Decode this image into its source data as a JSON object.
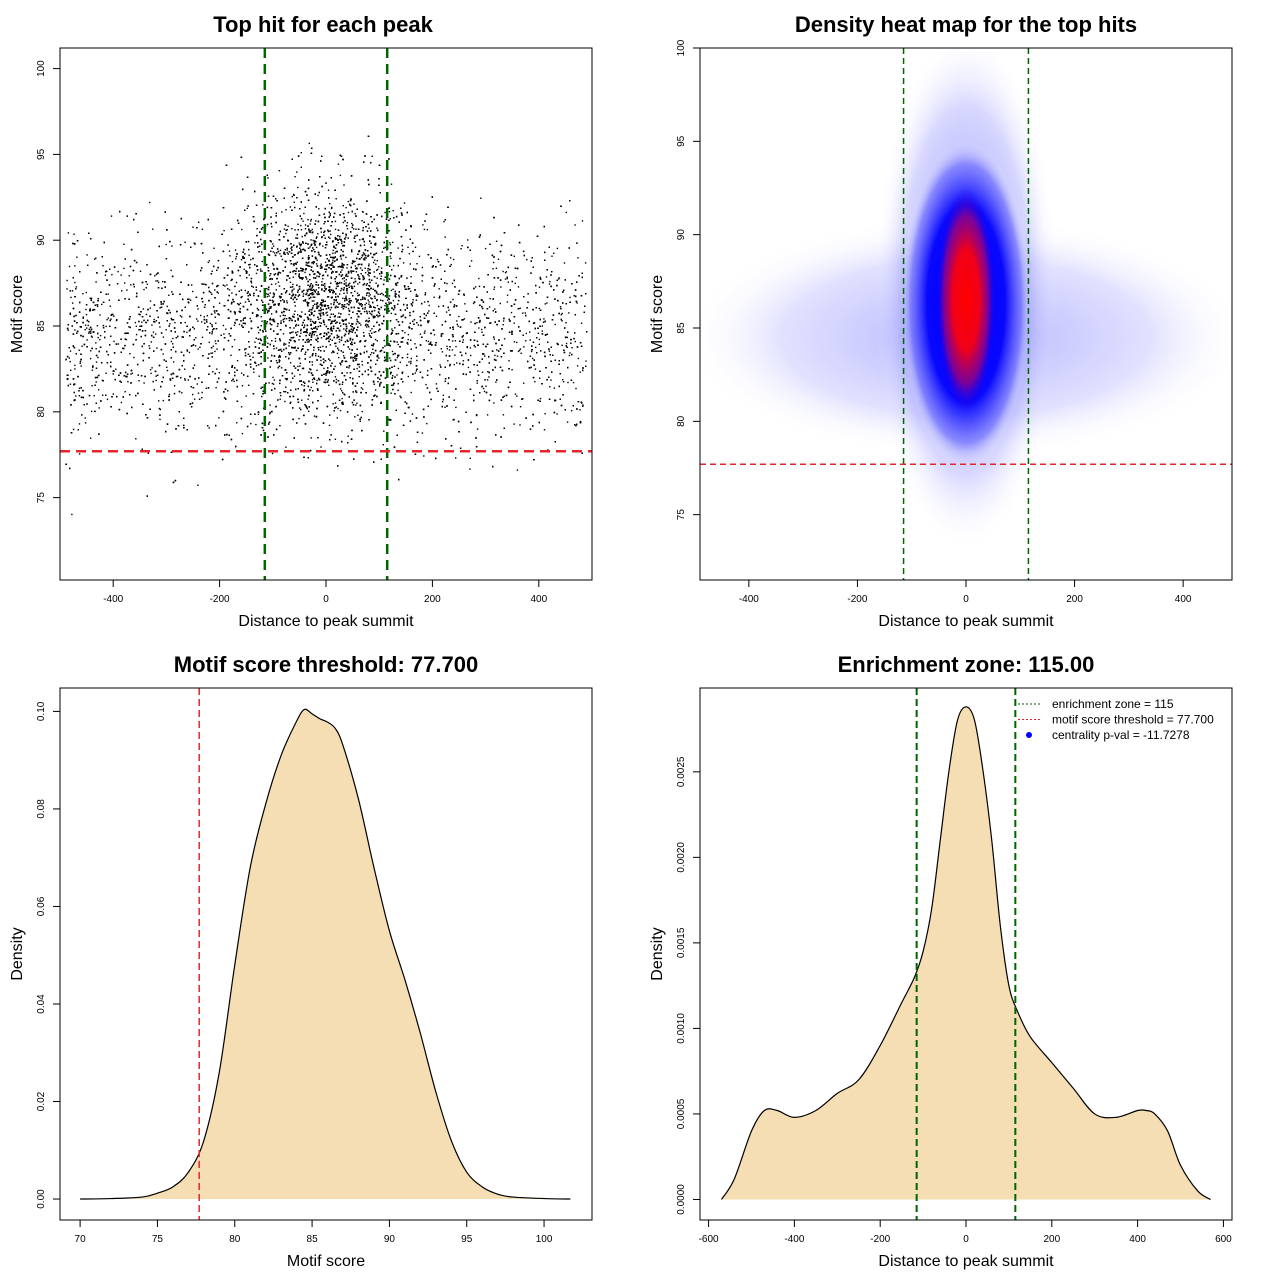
{
  "chart_data": [
    {
      "type": "scatter",
      "title": "Top hit for each peak",
      "xlabel": "Distance to peak summit",
      "ylabel": "Motif score",
      "xlim": [
        -500,
        500
      ],
      "ylim": [
        70.2,
        101.2
      ],
      "xticks": [
        -400,
        -200,
        0,
        200,
        400
      ],
      "yticks": [
        75,
        80,
        85,
        90,
        95,
        100
      ],
      "grid": false,
      "colors": {
        "points": "#000000",
        "zone_lines": "#006400",
        "threshold_line": "#e3262b"
      },
      "point_model": {
        "approx_point_count": 8000,
        "central_cluster": {
          "x_center": 0,
          "x_sd": 80,
          "y_center": 87,
          "y_sd": 3.2
        },
        "background": {
          "x_range": [
            -490,
            490
          ],
          "y_center": 84.5,
          "y_sd": 3
        }
      },
      "vlines": [
        -115,
        115
      ],
      "hline": 77.7
    },
    {
      "type": "heatmap",
      "title": "Density heat map for the top hits",
      "xlabel": "Distance to peak summit",
      "ylabel": "Motif score",
      "xlim": [
        -490,
        490
      ],
      "ylim": [
        71.5,
        100
      ],
      "xticks": [
        -400,
        -200,
        0,
        200,
        400
      ],
      "yticks": [
        75,
        80,
        85,
        90,
        95,
        100
      ],
      "grid": false,
      "color_scale": [
        "#ffffff",
        "#0000ff",
        "#ff0000"
      ],
      "colors": {
        "zone_lines": "#006400",
        "threshold_line": "#e3262b"
      },
      "density_peak": {
        "x": 0,
        "y": 86.5
      },
      "vlines": [
        -115,
        115
      ],
      "hline": 77.7
    },
    {
      "type": "area",
      "title": "Motif score threshold: 77.700",
      "xlabel": "Motif score",
      "ylabel": "Density",
      "xlim": [
        68.7,
        103.1
      ],
      "ylim": [
        -0.0043,
        0.1048
      ],
      "xticks": [
        70,
        75,
        80,
        85,
        90,
        95,
        100
      ],
      "yticks": [
        0.0,
        0.02,
        0.04,
        0.06,
        0.08,
        0.1
      ],
      "ytick_labels": [
        "0.00",
        "0.02",
        "0.04",
        "0.06",
        "0.08",
        "0.10"
      ],
      "fill_color": "#f5deb3",
      "line_color": "#000000",
      "vline_color": "#e3262b",
      "vlines": [
        77.7
      ],
      "x": [
        70,
        72,
        74,
        75,
        76,
        77,
        78,
        79,
        80,
        81,
        82,
        83,
        84,
        84.5,
        85,
        85.5,
        86,
        86.5,
        87,
        88,
        89,
        90,
        91,
        92,
        93,
        94,
        95,
        96,
        97,
        98,
        100,
        101.7
      ],
      "y": [
        0.0,
        0.0001,
        0.0004,
        0.0012,
        0.0025,
        0.0055,
        0.012,
        0.026,
        0.048,
        0.068,
        0.081,
        0.091,
        0.098,
        0.1004,
        0.0995,
        0.0985,
        0.0978,
        0.0965,
        0.093,
        0.082,
        0.068,
        0.055,
        0.045,
        0.034,
        0.022,
        0.012,
        0.0055,
        0.0025,
        0.001,
        0.0004,
        0.0001,
        0.0
      ]
    },
    {
      "type": "area",
      "title": "Enrichment zone: 115.00",
      "xlabel": "Distance to peak summit",
      "ylabel": "Density",
      "xlim": [
        -620,
        620
      ],
      "ylim": [
        -0.00012,
        0.00299
      ],
      "xticks": [
        -600,
        -400,
        -200,
        0,
        200,
        400,
        600
      ],
      "yticks": [
        0.0,
        0.0005,
        0.001,
        0.0015,
        0.002,
        0.0025
      ],
      "ytick_labels": [
        "0.0000",
        "0.0005",
        "0.0010",
        "0.0015",
        "0.0020",
        "0.0025"
      ],
      "fill_color": "#f5deb3",
      "line_color": "#000000",
      "vline_color": "#006400",
      "vlines": [
        -115,
        115
      ],
      "x": [
        -570,
        -540,
        -500,
        -470,
        -440,
        -400,
        -350,
        -300,
        -250,
        -200,
        -150,
        -120,
        -100,
        -80,
        -60,
        -40,
        -20,
        0,
        20,
        40,
        60,
        80,
        100,
        120,
        150,
        200,
        250,
        300,
        350,
        400,
        420,
        440,
        470,
        500,
        540,
        570
      ],
      "y": [
        0.0,
        0.00012,
        0.0004,
        0.00052,
        0.00052,
        0.00048,
        0.00052,
        0.00062,
        0.0007,
        0.0009,
        0.00115,
        0.0013,
        0.00145,
        0.0017,
        0.0021,
        0.0025,
        0.0028,
        0.00288,
        0.0028,
        0.0025,
        0.0021,
        0.0016,
        0.00125,
        0.0011,
        0.00095,
        0.0008,
        0.00065,
        0.0005,
        0.00048,
        0.00052,
        0.00052,
        0.0005,
        0.0004,
        0.0002,
        5e-05,
        0.0
      ],
      "legend": {
        "position": "top-right",
        "entries": [
          {
            "label": "enrichment zone = 115",
            "style": "dotted-line",
            "color": "#006400"
          },
          {
            "label": "motif score threshold = 77.700",
            "style": "dotted-line",
            "color": "#e3262b"
          },
          {
            "label": "centrality p-val = -11.7278",
            "style": "point",
            "color": "#0000ff"
          }
        ]
      }
    }
  ]
}
